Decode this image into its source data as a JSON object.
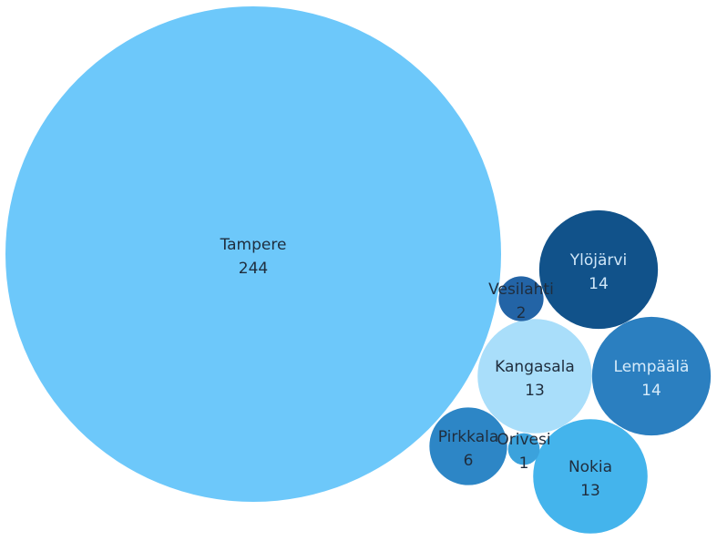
{
  "chart_data": {
    "type": "bubble",
    "title": "",
    "items": [
      {
        "name": "Tampere",
        "value": 244,
        "color": "#6dc8fa",
        "label_color": "#1f2d3d"
      },
      {
        "name": "Ylöjärvi",
        "value": 14,
        "color": "#11528a",
        "label_color": "#cfe6f8"
      },
      {
        "name": "Lempäälä",
        "value": 14,
        "color": "#2b7fc0",
        "label_color": "#d6ebfa"
      },
      {
        "name": "Kangasala",
        "value": 13,
        "color": "#a9defa",
        "label_color": "#1f2d3d"
      },
      {
        "name": "Nokia",
        "value": 13,
        "color": "#44b4ec",
        "label_color": "#1f2d3d"
      },
      {
        "name": "Pirkkala",
        "value": 6,
        "color": "#2d86c6",
        "label_color": "#1f2d3d"
      },
      {
        "name": "Vesilahti",
        "value": 2,
        "color": "#2364a6",
        "label_color": "#1f2d3d"
      },
      {
        "name": "Orivesi",
        "value": 1,
        "color": "#3ba2dc",
        "label_color": "#1f2d3d"
      }
    ]
  }
}
